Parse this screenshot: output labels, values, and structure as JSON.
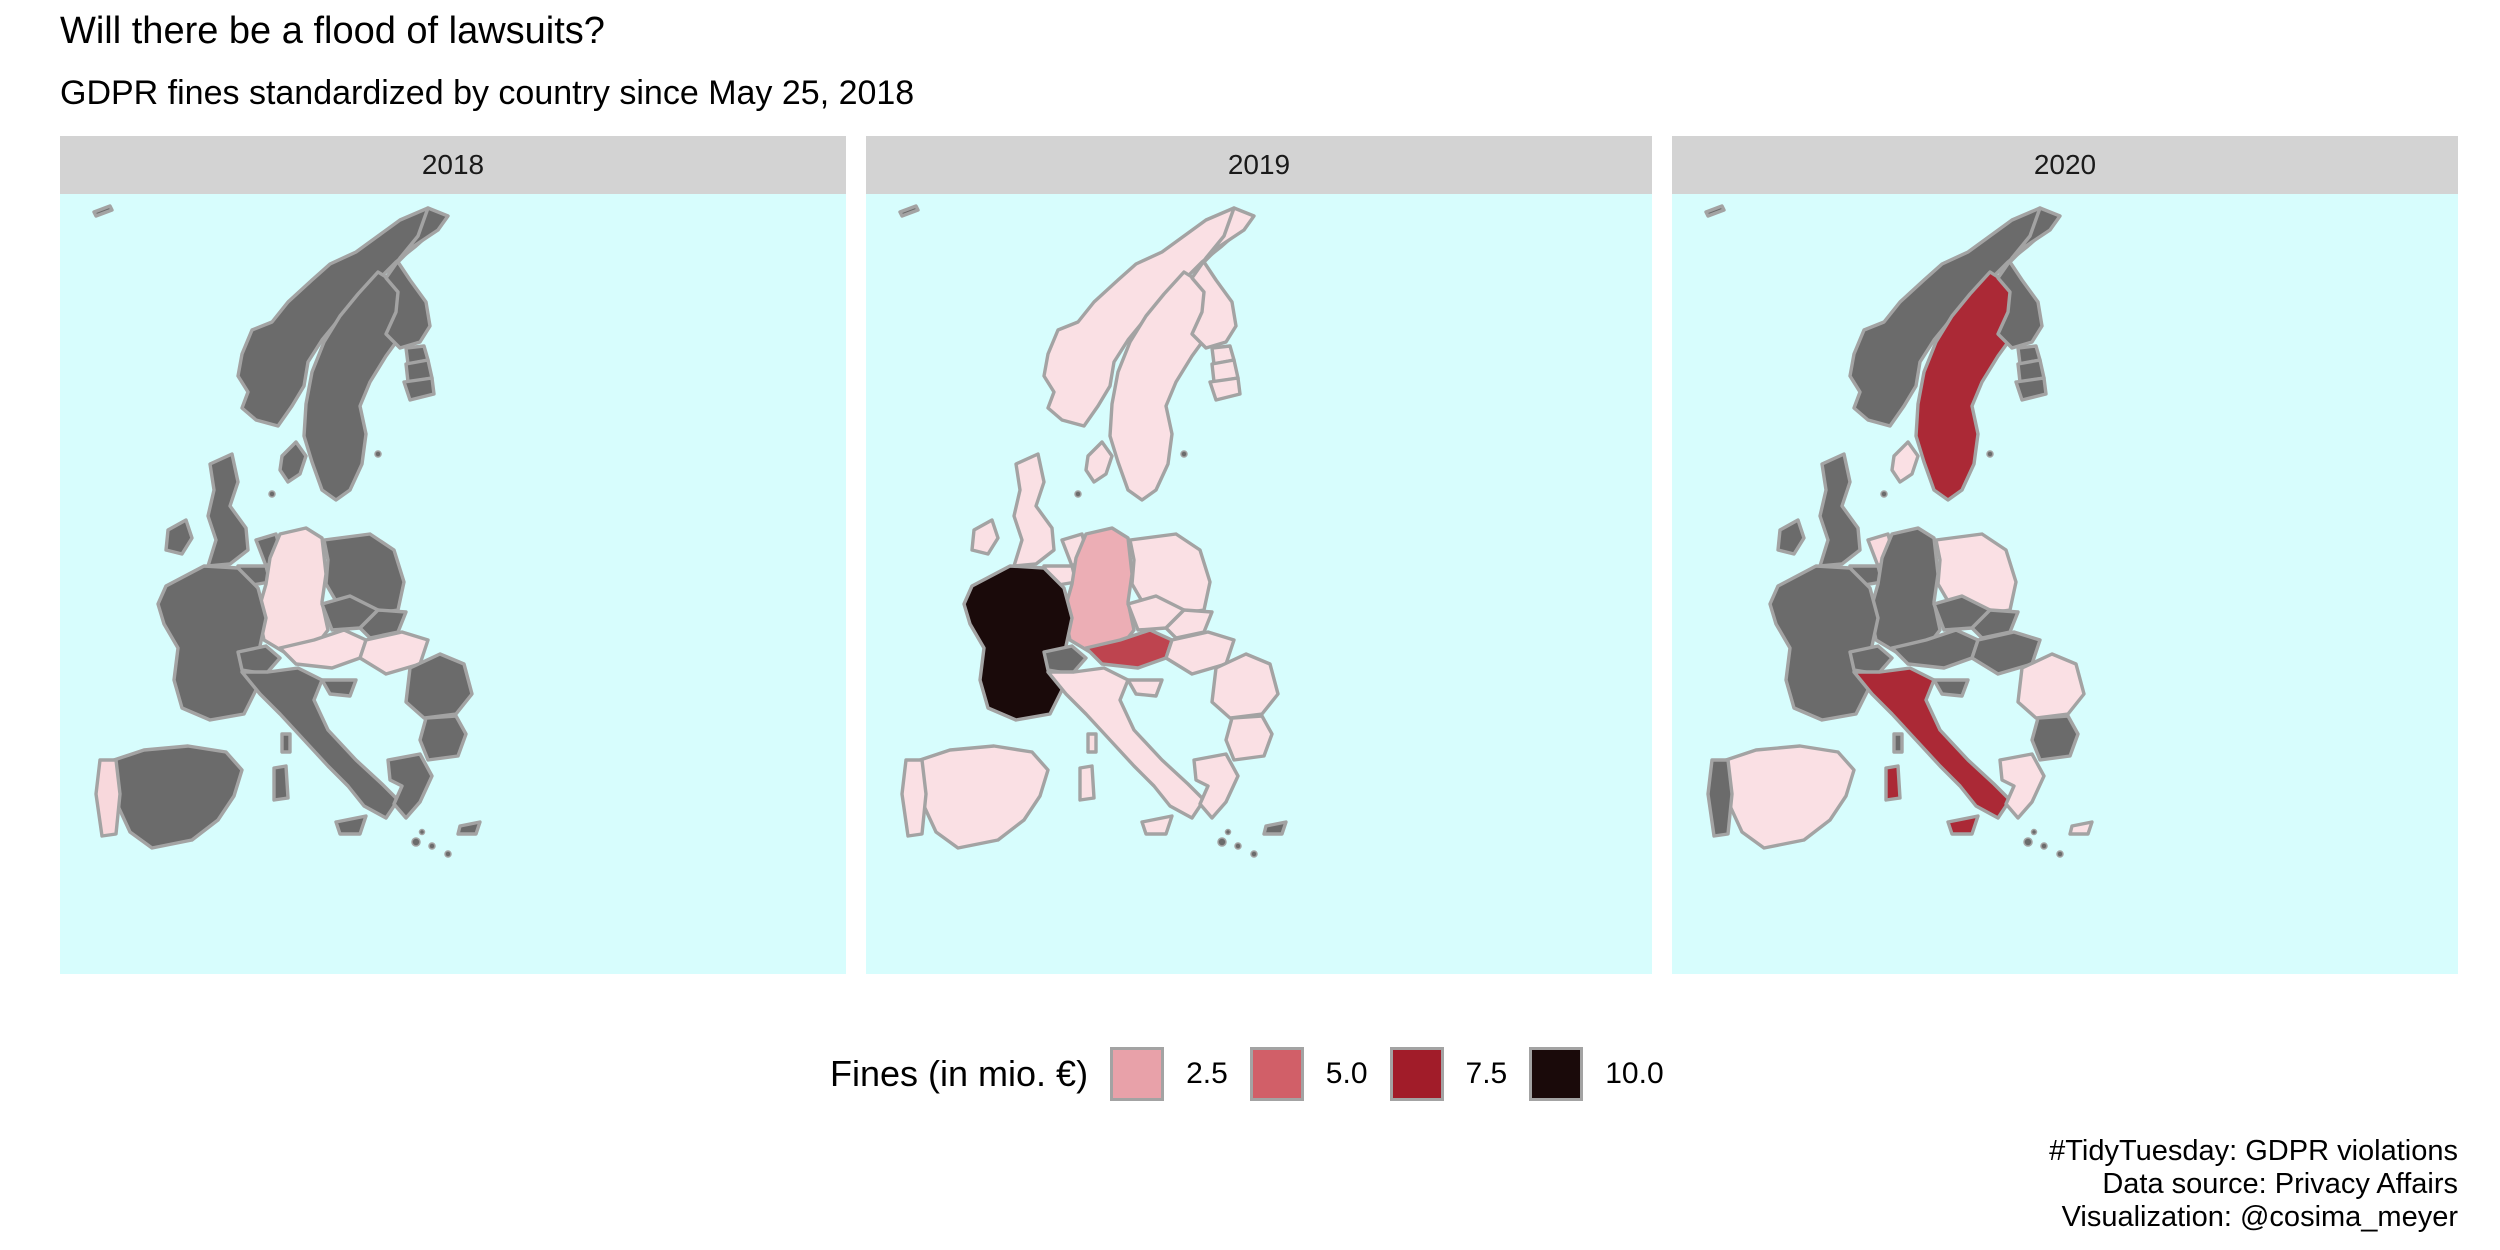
{
  "title": "Will there be a flood of lawsuits?",
  "subtitle": "GDPR fines standardized by country since May 25, 2018",
  "colors": {
    "ocean": "#d7fdfd",
    "no_fine": "#6b6b6b",
    "border": "#a3a3a3",
    "scale": [
      "#fad5da",
      "#e8a1a9",
      "#d15f68",
      "#a11c29",
      "#1a0a0a"
    ]
  },
  "legend": {
    "title": "Fines (in mio. €)",
    "items": [
      {
        "label": "2.5",
        "value": 2.5
      },
      {
        "label": "5.0",
        "value": 5.0
      },
      {
        "label": "7.5",
        "value": 7.5
      },
      {
        "label": "10.0",
        "value": 10.0
      }
    ]
  },
  "facets": [
    {
      "label": "2018",
      "fines": {
        "portugal": 0.4,
        "germany": 0.2,
        "austria": 0.1,
        "hungary": 0.1
      }
    },
    {
      "label": "2019",
      "fines": {
        "portugal": 0.1,
        "spain": 0.1,
        "france": 10.0,
        "uk": 0.1,
        "ireland": 0.1,
        "belgium": 0.1,
        "netherlands": 0.1,
        "germany": 2.0,
        "denmark": 0.1,
        "norway": 0.1,
        "sweden": 0.1,
        "finland": 0.1,
        "estonia": 0.1,
        "latvia": 0.1,
        "lithuania": 0.1,
        "poland": 0.1,
        "czechia": 0.1,
        "slovakia": 0.1,
        "austria": 6.0,
        "hungary": 0.1,
        "italy": 0.1,
        "romania": 0.1,
        "bulgaria": 0.1,
        "greece": 0.1,
        "croatia": 0.1,
        "sardinia": 0.1,
        "sicily": 0.1,
        "corsica": 0.2
      }
    },
    {
      "label": "2020",
      "fines": {
        "spain": 0.1,
        "netherlands": 0.3,
        "denmark": 0.1,
        "sweden": 7.0,
        "poland": 0.1,
        "italy": 7.0,
        "sardinia": 7.0,
        "sicily": 7.0,
        "romania": 0.1,
        "greece": 0.1,
        "cyprus": 0.1
      }
    }
  ],
  "caption": [
    "#TidyTuesday: GDPR violations",
    "Data source: Privacy Affairs",
    "Visualization: @cosima_meyer"
  ]
}
